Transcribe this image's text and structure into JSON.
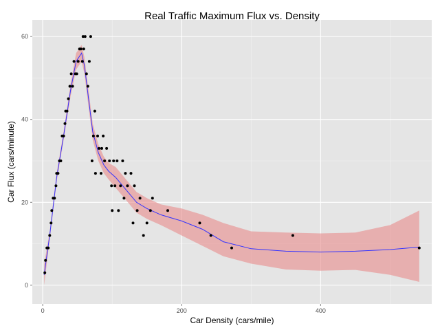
{
  "chart_data": {
    "type": "scatter",
    "title": "Real Traffic Maximum Flux vs. Density",
    "xlabel": "Car Density (cars/mile)",
    "ylabel": "Car Flux (cars/minute)",
    "xlim": [
      -15,
      560
    ],
    "ylim": [
      -4.5,
      64
    ],
    "x_ticks": [
      0,
      200,
      400
    ],
    "y_ticks": [
      0,
      20,
      40,
      60
    ],
    "x_tick_labels": [
      "0",
      "200",
      "400"
    ],
    "y_tick_labels": [
      "0",
      "20",
      "40",
      "60"
    ],
    "grid": true,
    "legend": "none",
    "points": [
      {
        "x": 3,
        "y": 3
      },
      {
        "x": 4,
        "y": 6
      },
      {
        "x": 6,
        "y": 9
      },
      {
        "x": 8,
        "y": 9
      },
      {
        "x": 10,
        "y": 12
      },
      {
        "x": 12,
        "y": 15
      },
      {
        "x": 13,
        "y": 18
      },
      {
        "x": 15,
        "y": 21
      },
      {
        "x": 17,
        "y": 21
      },
      {
        "x": 19,
        "y": 24
      },
      {
        "x": 20,
        "y": 27
      },
      {
        "x": 22,
        "y": 27
      },
      {
        "x": 24,
        "y": 30
      },
      {
        "x": 26,
        "y": 30
      },
      {
        "x": 28,
        "y": 36
      },
      {
        "x": 30,
        "y": 36
      },
      {
        "x": 32,
        "y": 39
      },
      {
        "x": 33,
        "y": 42
      },
      {
        "x": 35,
        "y": 42
      },
      {
        "x": 37,
        "y": 45
      },
      {
        "x": 39,
        "y": 48
      },
      {
        "x": 41,
        "y": 51
      },
      {
        "x": 43,
        "y": 48
      },
      {
        "x": 45,
        "y": 54
      },
      {
        "x": 47,
        "y": 51
      },
      {
        "x": 49,
        "y": 51
      },
      {
        "x": 51,
        "y": 54
      },
      {
        "x": 53,
        "y": 57
      },
      {
        "x": 55,
        "y": 57
      },
      {
        "x": 57,
        "y": 54
      },
      {
        "x": 58,
        "y": 60
      },
      {
        "x": 59,
        "y": 57
      },
      {
        "x": 61,
        "y": 60
      },
      {
        "x": 63,
        "y": 51
      },
      {
        "x": 65,
        "y": 48
      },
      {
        "x": 67,
        "y": 54
      },
      {
        "x": 69,
        "y": 60
      },
      {
        "x": 71,
        "y": 30
      },
      {
        "x": 73,
        "y": 36
      },
      {
        "x": 75,
        "y": 42
      },
      {
        "x": 76,
        "y": 27
      },
      {
        "x": 79,
        "y": 36
      },
      {
        "x": 81,
        "y": 33
      },
      {
        "x": 84,
        "y": 27
      },
      {
        "x": 85,
        "y": 33
      },
      {
        "x": 87,
        "y": 36
      },
      {
        "x": 89,
        "y": 30
      },
      {
        "x": 92,
        "y": 33
      },
      {
        "x": 96,
        "y": 30
      },
      {
        "x": 99,
        "y": 24
      },
      {
        "x": 100,
        "y": 18
      },
      {
        "x": 102,
        "y": 30
      },
      {
        "x": 104,
        "y": 24
      },
      {
        "x": 107,
        "y": 30
      },
      {
        "x": 109,
        "y": 18
      },
      {
        "x": 112,
        "y": 24
      },
      {
        "x": 115,
        "y": 30
      },
      {
        "x": 117,
        "y": 21
      },
      {
        "x": 119,
        "y": 27
      },
      {
        "x": 122,
        "y": 24
      },
      {
        "x": 127,
        "y": 27
      },
      {
        "x": 130,
        "y": 15
      },
      {
        "x": 132,
        "y": 24
      },
      {
        "x": 136,
        "y": 18
      },
      {
        "x": 140,
        "y": 21
      },
      {
        "x": 145,
        "y": 12
      },
      {
        "x": 150,
        "y": 15
      },
      {
        "x": 155,
        "y": 18
      },
      {
        "x": 158,
        "y": 21
      },
      {
        "x": 180,
        "y": 18
      },
      {
        "x": 226,
        "y": 15
      },
      {
        "x": 242,
        "y": 12
      },
      {
        "x": 272,
        "y": 9
      },
      {
        "x": 360,
        "y": 12
      },
      {
        "x": 542,
        "y": 9
      }
    ],
    "series": [
      {
        "kind": "smooth",
        "x": [
          2,
          10,
          20,
          30,
          40,
          48,
          56,
          60,
          66,
          72,
          80,
          88,
          95,
          105,
          115,
          125,
          135,
          150,
          170,
          200,
          230,
          260,
          300,
          350,
          400,
          450,
          500,
          542
        ],
        "y": [
          2.5,
          12,
          26,
          36,
          47,
          54,
          56,
          53,
          45,
          37,
          32,
          29,
          27.5,
          26,
          24,
          22,
          20,
          18.5,
          17,
          15.5,
          13.5,
          10.5,
          8.8,
          8.2,
          8.0,
          8.2,
          8.6,
          9.2
        ],
        "lower": [
          0,
          11,
          25,
          35,
          45.5,
          52,
          54,
          51,
          43,
          35,
          30,
          27,
          25.5,
          23.5,
          21.5,
          19.5,
          17.5,
          16,
          14.5,
          12,
          9.5,
          7,
          5.2,
          3.8,
          3.5,
          3.7,
          2.5,
          0.8
        ],
        "upper": [
          5,
          13,
          27,
          37,
          48.5,
          56,
          58,
          55,
          47,
          39,
          34,
          31,
          29.5,
          28.5,
          26.5,
          24.5,
          22.5,
          21,
          19.5,
          18.5,
          17,
          15,
          13,
          12.7,
          12.5,
          12.7,
          14.5,
          18
        ]
      }
    ],
    "colors": {
      "panel": "#e5e5e5",
      "grid": "#ffffff",
      "points": "#000000",
      "line": "#3333ff",
      "ribbon": "#e88b8b"
    }
  }
}
